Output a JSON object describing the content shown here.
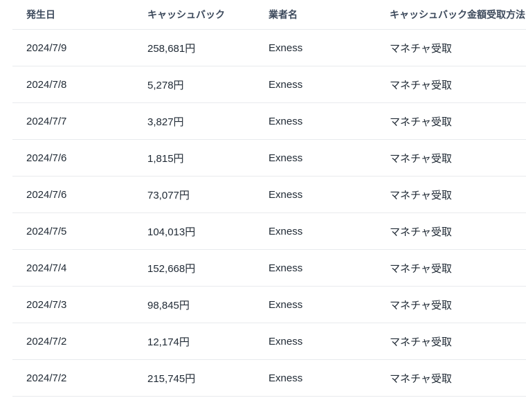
{
  "table": {
    "headers": {
      "date": "発生日",
      "cashback": "キャッシュバック",
      "broker": "業者名",
      "method": "キャッシュバック金額受取方法"
    },
    "rows": [
      {
        "date": "2024/7/9",
        "cashback": "258,681円",
        "broker": "Exness",
        "method": "マネチャ受取"
      },
      {
        "date": "2024/7/8",
        "cashback": "5,278円",
        "broker": "Exness",
        "method": "マネチャ受取"
      },
      {
        "date": "2024/7/7",
        "cashback": "3,827円",
        "broker": "Exness",
        "method": "マネチャ受取"
      },
      {
        "date": "2024/7/6",
        "cashback": "1,815円",
        "broker": "Exness",
        "method": "マネチャ受取"
      },
      {
        "date": "2024/7/6",
        "cashback": "73,077円",
        "broker": "Exness",
        "method": "マネチャ受取"
      },
      {
        "date": "2024/7/5",
        "cashback": "104,013円",
        "broker": "Exness",
        "method": "マネチャ受取"
      },
      {
        "date": "2024/7/4",
        "cashback": "152,668円",
        "broker": "Exness",
        "method": "マネチャ受取"
      },
      {
        "date": "2024/7/3",
        "cashback": "98,845円",
        "broker": "Exness",
        "method": "マネチャ受取"
      },
      {
        "date": "2024/7/2",
        "cashback": "12,174円",
        "broker": "Exness",
        "method": "マネチャ受取"
      },
      {
        "date": "2024/7/2",
        "cashback": "215,745円",
        "broker": "Exness",
        "method": "マネチャ受取"
      }
    ],
    "colors": {
      "header_text": "#3d4a5c",
      "body_text": "#212b36",
      "divider": "#e8eaed",
      "background": "#ffffff"
    }
  }
}
